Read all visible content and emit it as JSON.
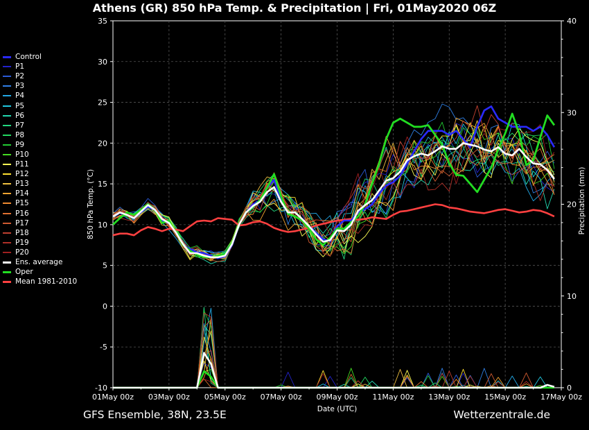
{
  "chart_data": {
    "type": "line",
    "title": "Athens  (GR)  850 hPa Temp. & Precipitation | Fri, 01May2020 06Z",
    "xlabel": "Date (UTC)",
    "ylabel": "850 hPa Temp. (°C)",
    "y2label": "Precipitation (mm)",
    "x_ticks": [
      "01May 00z",
      "03May 00z",
      "05May 00z",
      "07May 00z",
      "09May 00z",
      "11May 00z",
      "13May 00z",
      "15May 00z",
      "17May 00z"
    ],
    "xlim": [
      0,
      384
    ],
    "ylim": [
      -10,
      35
    ],
    "y2lim": [
      0,
      40
    ],
    "y_ticks": [
      -10,
      -5,
      0,
      5,
      10,
      15,
      20,
      25,
      30,
      35
    ],
    "y2_ticks": [
      0,
      10,
      20,
      30,
      40
    ],
    "grid": true,
    "legend_position": "left",
    "legend": [
      {
        "name": "Control",
        "color": "#2a2aff",
        "thick": true
      },
      {
        "name": "P1",
        "color": "#2222cc"
      },
      {
        "name": "P2",
        "color": "#2a5ad8"
      },
      {
        "name": "P3",
        "color": "#2f80e6"
      },
      {
        "name": "P4",
        "color": "#22a8e6"
      },
      {
        "name": "P5",
        "color": "#20c8e0"
      },
      {
        "name": "P6",
        "color": "#22d8b0"
      },
      {
        "name": "P7",
        "color": "#22d880"
      },
      {
        "name": "P8",
        "color": "#22d860"
      },
      {
        "name": "P9",
        "color": "#22cc33"
      },
      {
        "name": "P10",
        "color": "#44dd22"
      },
      {
        "name": "P11",
        "color": "#ffff55"
      },
      {
        "name": "P12",
        "color": "#ffe030"
      },
      {
        "name": "P13",
        "color": "#f0c040"
      },
      {
        "name": "P14",
        "color": "#f5a530"
      },
      {
        "name": "P15",
        "color": "#f08a30"
      },
      {
        "name": "P16",
        "color": "#e07030"
      },
      {
        "name": "P17",
        "color": "#d05a30"
      },
      {
        "name": "P18",
        "color": "#c04030"
      },
      {
        "name": "P19",
        "color": "#b03028"
      },
      {
        "name": "P20",
        "color": "#a02020"
      },
      {
        "name": "Ens. average",
        "color": "#ffffff",
        "thick": true
      },
      {
        "name": "Oper",
        "color": "#22dd22",
        "thick": true
      },
      {
        "name": "Mean 1981-2010",
        "color": "#ff4040",
        "thick": true
      }
    ],
    "x_step_hours": 6,
    "series": {
      "control": [
        11,
        11.5,
        11.2,
        10.8,
        11.5,
        12.2,
        11.8,
        10.5,
        10.2,
        9,
        7.5,
        7,
        6.6,
        6.5,
        6.2,
        5.9,
        6.1,
        7.5,
        10,
        11.5,
        12.5,
        13,
        14.5,
        15.5,
        13,
        11.3,
        11,
        10.5,
        9.8,
        9,
        8.2,
        8,
        9.8,
        10.5,
        10.5,
        11.5,
        11.9,
        12.5,
        13.8,
        14.8,
        15.2,
        16,
        17.5,
        19,
        20.5,
        21.5,
        21.5,
        21.5,
        21,
        21.5,
        20.5,
        19.5,
        22,
        24,
        24.5,
        23,
        22.5,
        22,
        22,
        22,
        21.5,
        22,
        21,
        19.5
      ],
      "ens_avg": [
        11,
        11.5,
        11.2,
        10.8,
        11.6,
        12.4,
        11.8,
        10.7,
        10.2,
        9,
        7.6,
        6.5,
        6.5,
        6.2,
        6,
        6,
        6.2,
        7.6,
        10,
        11.5,
        12.3,
        12.8,
        14,
        14.6,
        12.8,
        11.5,
        11.5,
        10.7,
        9.8,
        8.8,
        7.9,
        8.1,
        9.3,
        9.2,
        10,
        11.7,
        12.4,
        13,
        14.2,
        15.4,
        15.7,
        16.5,
        17.9,
        18.4,
        18.7,
        18.5,
        19,
        19.6,
        19.3,
        19.3,
        20,
        19.8,
        19.6,
        19.2,
        19,
        19.5,
        18.7,
        18.5,
        19.3,
        18.3,
        17.5,
        17.4,
        16.7,
        15.6
      ],
      "oper": [
        10,
        10.8,
        11.5,
        11.2,
        11.8,
        12.5,
        11.8,
        10.2,
        10.5,
        9,
        7.5,
        6.8,
        6.3,
        6,
        6,
        6.2,
        6.4,
        7.8,
        10,
        11.5,
        12.2,
        13,
        14.5,
        16.2,
        13.5,
        11.3,
        11,
        10.5,
        9.5,
        8.2,
        7.5,
        8.4,
        9.5,
        9.5,
        10.3,
        11,
        12.5,
        15,
        17.5,
        20.5,
        22.5,
        23,
        22.5,
        22,
        22,
        22.2,
        21,
        19.8,
        17.5,
        16.1,
        16,
        15,
        14,
        15.5,
        17,
        19.2,
        21.2,
        23.6,
        21.2,
        17.3,
        17.9,
        20.7,
        23.4,
        22.2
      ],
      "mean": [
        8.7,
        8.9,
        8.9,
        8.7,
        9.3,
        9.7,
        9.5,
        9.2,
        9.5,
        9.4,
        9.2,
        9.8,
        10.4,
        10.5,
        10.4,
        10.8,
        10.7,
        10.6,
        9.9,
        10,
        10.3,
        10.4,
        10.1,
        9.6,
        9.3,
        9.1,
        9.2,
        9.4,
        9.6,
        9.9,
        10.1,
        10.3,
        10.5,
        10.6,
        10.7,
        10.6,
        10.7,
        10.9,
        10.8,
        10.7,
        11.2,
        11.6,
        11.7,
        11.9,
        12.1,
        12.3,
        12.5,
        12.4,
        12.1,
        12,
        11.8,
        11.6,
        11.5,
        11.4,
        11.6,
        11.8,
        11.9,
        11.7,
        11.5,
        11.6,
        11.8,
        11.7,
        11.4,
        11
      ]
    }
  },
  "footer": {
    "left": "GFS Ensemble, 38N, 23.5E",
    "right": "Wetterzentrale.de"
  }
}
